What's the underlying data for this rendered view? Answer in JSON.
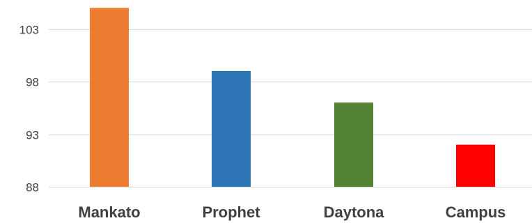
{
  "chart_data": {
    "type": "bar",
    "title": "",
    "xlabel": "",
    "ylabel": "",
    "categories": [
      "Mankato",
      "Prophet",
      "Daytona",
      "Campus"
    ],
    "values": [
      105,
      99,
      96,
      92
    ],
    "colors": [
      "#ED7D31",
      "#2E75B6",
      "#548235",
      "#FF0000"
    ],
    "ylim": [
      88,
      105
    ],
    "yticks": [
      88,
      93,
      98,
      103
    ],
    "ytick_labels": [
      "88",
      "93",
      "98",
      "103"
    ],
    "grid": true,
    "legend": "none"
  }
}
